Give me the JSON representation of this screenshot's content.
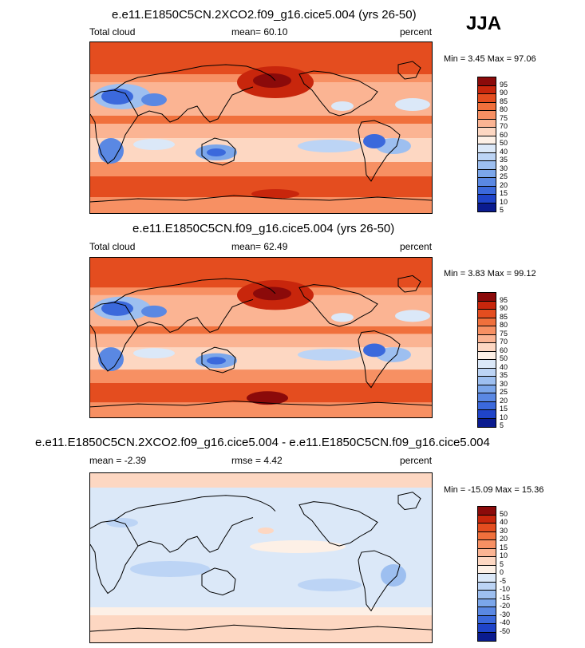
{
  "season": "JJA",
  "panels": [
    {
      "title": "e.e11.E1850C5CN.2XCO2.f09_g16.cice5.004 (yrs 26-50)",
      "left_label": "Total cloud",
      "center_label": "mean=  60.10",
      "right_label": "percent",
      "minmax": "Min =   3.45 Max =  97.06",
      "levels": [
        "95",
        "90",
        "85",
        "80",
        "75",
        "70",
        "60",
        "50",
        "40",
        "35",
        "30",
        "25",
        "20",
        "15",
        "10",
        "5"
      ],
      "colors": [
        "#8b0a0a",
        "#c8260c",
        "#e44d1f",
        "#f0703c",
        "#f79063",
        "#fbb493",
        "#fdd7c2",
        "#fdf0e6",
        "#dbe8f8",
        "#bcd4f5",
        "#9dbff0",
        "#7ba6ea",
        "#5a88e3",
        "#3b69dc",
        "#1f44c9",
        "#0a1b8f"
      ],
      "style": "high"
    },
    {
      "title": "e.e11.E1850C5CN.f09_g16.cice5.004 (yrs 26-50)",
      "left_label": "Total cloud",
      "center_label": "mean=  62.49",
      "right_label": "percent",
      "minmax": "Min =   3.83 Max =  99.12",
      "levels": [
        "95",
        "90",
        "85",
        "80",
        "75",
        "70",
        "60",
        "50",
        "40",
        "35",
        "30",
        "25",
        "20",
        "15",
        "10",
        "5"
      ],
      "colors": [
        "#8b0a0a",
        "#c8260c",
        "#e44d1f",
        "#f0703c",
        "#f79063",
        "#fbb493",
        "#fdd7c2",
        "#fdf0e6",
        "#dbe8f8",
        "#bcd4f5",
        "#9dbff0",
        "#7ba6ea",
        "#5a88e3",
        "#3b69dc",
        "#1f44c9",
        "#0a1b8f"
      ],
      "style": "high"
    },
    {
      "title": "e.e11.E1850C5CN.2XCO2.f09_g16.cice5.004 - e.e11.E1850C5CN.f09_g16.cice5.004",
      "left_label": "mean =  -2.39",
      "center_label": "rmse =   4.42",
      "right_label": "percent",
      "minmax": "Min = -15.09 Max =  15.36",
      "levels": [
        "50",
        "40",
        "30",
        "20",
        "15",
        "10",
        "5",
        "0",
        "-5",
        "-10",
        "-15",
        "-20",
        "-30",
        "-40",
        "-50"
      ],
      "colors": [
        "#8b0a0a",
        "#c8260c",
        "#e44d1f",
        "#f0703c",
        "#f79063",
        "#fbb493",
        "#fdd7c2",
        "#fdf0e6",
        "#dbe8f8",
        "#bcd4f5",
        "#9dbff0",
        "#7ba6ea",
        "#5a88e3",
        "#3b69dc",
        "#1f44c9",
        "#0a1b8f"
      ],
      "style": "diff"
    }
  ]
}
